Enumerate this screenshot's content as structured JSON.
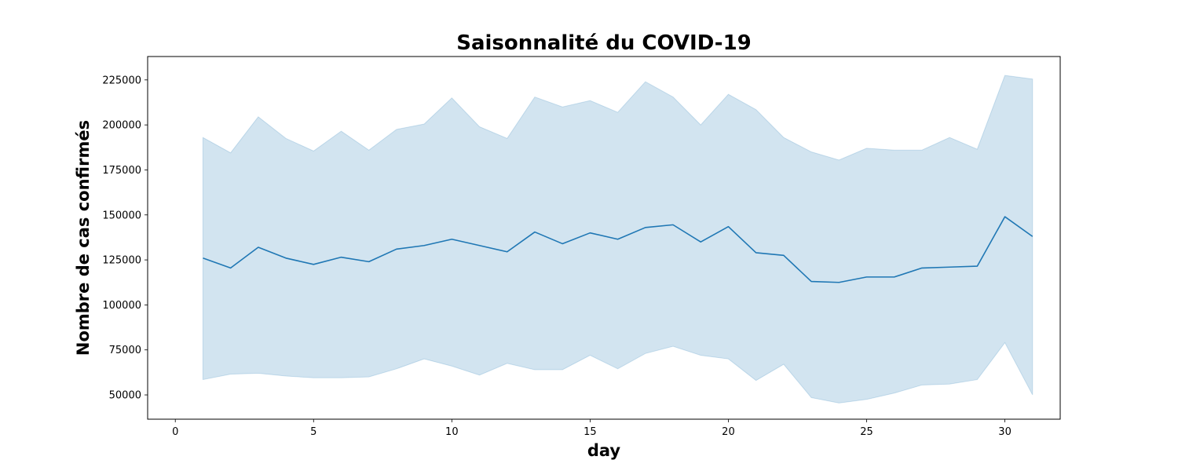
{
  "chart_data": {
    "type": "line",
    "title": "Saisonnalité du COVID-19",
    "xlabel": "day",
    "ylabel": "Nombre de cas confirmés",
    "xlim": [
      -1,
      32
    ],
    "ylim": [
      36500,
      238000
    ],
    "xticks": [
      0,
      5,
      10,
      15,
      20,
      25,
      30
    ],
    "yticks": [
      50000,
      75000,
      100000,
      125000,
      150000,
      175000,
      200000,
      225000
    ],
    "grid": false,
    "x": [
      1,
      2,
      3,
      4,
      5,
      6,
      7,
      8,
      9,
      10,
      11,
      12,
      13,
      14,
      15,
      16,
      17,
      18,
      19,
      20,
      21,
      22,
      23,
      24,
      25,
      26,
      27,
      28,
      29,
      30,
      31
    ],
    "series": [
      {
        "name": "",
        "color": "#1f77b4",
        "values": [
          126000,
          120500,
          132000,
          126000,
          122500,
          126500,
          124000,
          131000,
          133000,
          136500,
          133000,
          129500,
          140500,
          134000,
          140000,
          136500,
          143000,
          144500,
          135000,
          143500,
          129000,
          127500,
          113000,
          112500,
          115500,
          115500,
          120500,
          121000,
          121500,
          149000,
          138000
        ],
        "ci_upper": [
          193000,
          184500,
          204500,
          192500,
          185500,
          196500,
          186000,
          197500,
          200500,
          215000,
          199000,
          192500,
          215500,
          210000,
          213500,
          207000,
          224000,
          215500,
          200000,
          217000,
          208500,
          193000,
          185000,
          180500,
          187000,
          186000,
          186000,
          193000,
          186500,
          227500,
          225500
        ],
        "ci_lower": [
          58500,
          61500,
          62000,
          60500,
          59500,
          59500,
          60000,
          64500,
          70000,
          66000,
          61000,
          67500,
          64000,
          64000,
          72000,
          64500,
          73000,
          77000,
          72000,
          70000,
          58000,
          67000,
          48500,
          45500,
          47500,
          51000,
          55500,
          56000,
          58500,
          79000,
          50000
        ]
      }
    ],
    "fill_color": "#1f77b4",
    "fill_opacity": 0.2
  }
}
